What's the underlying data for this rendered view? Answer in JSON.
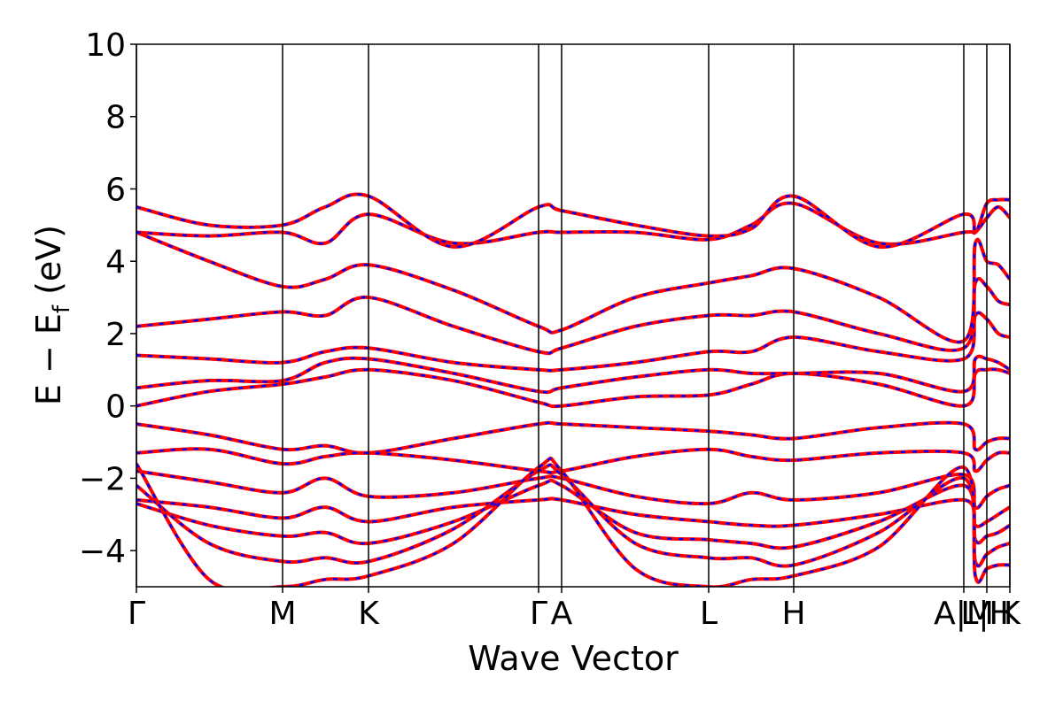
{
  "chart_data": {
    "type": "band_structure",
    "xlabel": "Wave Vector",
    "ylabel": [
      "E − E",
      "f",
      " (eV)"
    ],
    "xlim": [
      0,
      9.86
    ],
    "ylim": [
      -5,
      10
    ],
    "yticks": [
      {
        "value": -4,
        "label": "−4"
      },
      {
        "value": -2,
        "label": "−2"
      },
      0,
      2,
      4,
      6,
      8,
      10
    ],
    "xticks": [
      {
        "value": 0,
        "label": "Γ"
      },
      {
        "value": 1.65,
        "label": "M"
      },
      {
        "value": 2.62,
        "label": "K"
      },
      {
        "value": 4.54,
        "label": "Γ"
      },
      {
        "value": 4.8,
        "label": "A"
      },
      {
        "value": 6.46,
        "label": "L"
      },
      {
        "value": 7.42,
        "label": "H"
      },
      {
        "value": 9.34,
        "label": "A|M"
      },
      {
        "value": 9.6,
        "label": "L|H"
      },
      {
        "value": 9.86,
        "label": "K"
      }
    ],
    "color": "#ff0000",
    "overlay_color": "#0000ff",
    "x": [
      0,
      0.82,
      1.65,
      2.13,
      2.62,
      3.58,
      4.54,
      4.8,
      5.63,
      6.46,
      6.94,
      7.42,
      8.38,
      9.34,
      9.47,
      9.6,
      9.73,
      9.86
    ],
    "bands": [
      [
        0.0,
        0.4,
        0.6,
        0.8,
        1.0,
        0.7,
        0.1,
        0.0,
        0.25,
        0.3,
        0.6,
        0.9,
        0.6,
        0.0,
        0.9,
        1.0,
        1.0,
        0.9
      ],
      [
        0.5,
        0.7,
        0.7,
        1.2,
        1.3,
        0.9,
        0.4,
        0.5,
        0.8,
        1.0,
        0.9,
        0.9,
        0.9,
        0.4,
        1.3,
        1.3,
        1.2,
        1.0
      ],
      [
        1.4,
        1.3,
        1.2,
        1.5,
        1.6,
        1.2,
        1.0,
        1.0,
        1.2,
        1.5,
        1.5,
        1.9,
        1.5,
        1.3,
        2.5,
        2.4,
        2.0,
        1.9
      ],
      [
        2.2,
        2.4,
        2.6,
        2.5,
        3.0,
        2.2,
        1.5,
        1.6,
        2.2,
        2.5,
        2.5,
        2.6,
        2.0,
        1.6,
        3.4,
        3.3,
        2.9,
        2.8
      ],
      [
        4.8,
        4.0,
        3.3,
        3.5,
        3.9,
        3.2,
        2.2,
        2.1,
        3.0,
        3.4,
        3.6,
        3.8,
        3.0,
        1.8,
        4.5,
        4.0,
        3.9,
        3.5
      ],
      [
        4.8,
        4.7,
        4.8,
        4.5,
        5.3,
        4.5,
        4.8,
        4.8,
        4.8,
        4.6,
        5.0,
        5.6,
        4.5,
        4.8,
        4.8,
        5.2,
        5.5,
        5.2
      ],
      [
        5.5,
        5.0,
        5.0,
        5.5,
        5.8,
        4.4,
        5.5,
        5.4,
        5.0,
        4.7,
        4.9,
        5.8,
        4.4,
        5.3,
        4.8,
        5.6,
        5.7,
        5.7
      ],
      [
        -0.5,
        -0.8,
        -1.2,
        -1.1,
        -1.3,
        -0.9,
        -0.5,
        -0.5,
        -0.6,
        -0.7,
        -0.8,
        -0.9,
        -0.6,
        -0.5,
        -1.2,
        -1.0,
        -0.9,
        -0.9
      ],
      [
        -1.3,
        -1.2,
        -1.6,
        -1.4,
        -1.3,
        -1.5,
        -1.8,
        -1.8,
        -1.4,
        -1.2,
        -1.4,
        -1.5,
        -1.3,
        -1.3,
        -1.8,
        -1.5,
        -1.3,
        -1.3
      ],
      [
        -1.8,
        -2.1,
        -2.4,
        -2.0,
        -2.5,
        -2.4,
        -2.0,
        -2.0,
        -2.5,
        -2.7,
        -2.4,
        -2.6,
        -2.4,
        -1.9,
        -2.8,
        -2.5,
        -2.3,
        -2.2
      ],
      [
        -2.6,
        -2.8,
        -3.1,
        -2.8,
        -3.2,
        -2.8,
        -2.6,
        -2.6,
        -3.0,
        -3.2,
        -3.3,
        -3.3,
        -3.0,
        -2.6,
        -3.3,
        -3.2,
        -3.0,
        -2.8
      ],
      [
        -2.7,
        -3.3,
        -3.6,
        -3.5,
        -3.8,
        -3.2,
        -2.2,
        -2.2,
        -3.5,
        -3.7,
        -3.8,
        -3.9,
        -3.2,
        -2.2,
        -3.7,
        -3.6,
        -3.5,
        -3.3
      ],
      [
        -2.2,
        -3.8,
        -4.3,
        -4.2,
        -4.3,
        -3.4,
        -1.8,
        -1.9,
        -3.8,
        -4.2,
        -4.2,
        -4.4,
        -3.5,
        -2.0,
        -4.3,
        -4.1,
        -3.9,
        -3.8
      ],
      [
        -1.6,
        -4.8,
        -5.0,
        -4.8,
        -4.7,
        -3.8,
        -1.7,
        -1.8,
        -4.5,
        -5.0,
        -4.8,
        -4.7,
        -3.9,
        -1.7,
        -4.7,
        -4.5,
        -4.4,
        -4.4
      ]
    ]
  }
}
